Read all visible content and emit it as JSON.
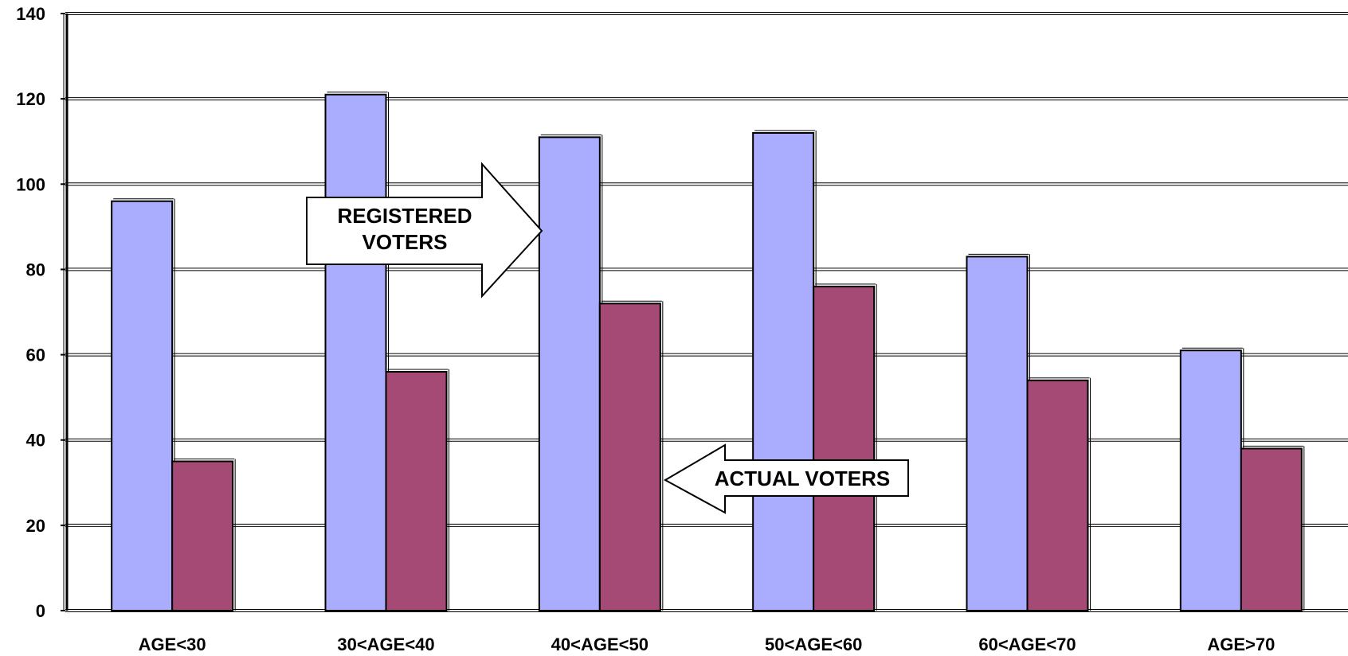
{
  "chart_data": {
    "type": "bar",
    "categories": [
      "AGE<30",
      "30<AGE<40",
      "40<AGE<50",
      "50<AGE<60",
      "60<AGE<70",
      "AGE>70"
    ],
    "series": [
      {
        "values": [
          96,
          121,
          111,
          112,
          83,
          61
        ],
        "color": "#aaadfe"
      },
      {
        "values": [
          35,
          56,
          72,
          76,
          54,
          38
        ],
        "color": "#a54a75"
      }
    ],
    "ylim": [
      0,
      140
    ],
    "yticks": [
      0,
      20,
      40,
      60,
      80,
      100,
      120,
      140
    ],
    "grid": true,
    "annotations": {
      "registered_line1": "REGISTERED",
      "registered_line2": "VOTERS",
      "actual": "ACTUAL VOTERS"
    }
  }
}
